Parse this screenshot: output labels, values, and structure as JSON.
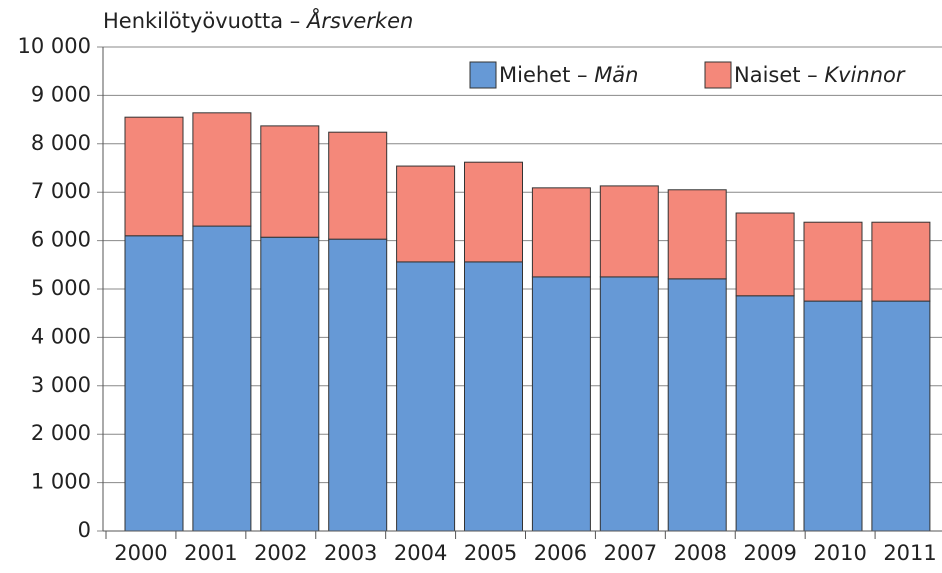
{
  "chart_data": {
    "type": "stacked_bar",
    "y_label": "Henkilötyövuotta – Årsverken",
    "categories": [
      "2000",
      "2001",
      "2002",
      "2003",
      "2004",
      "2005",
      "2006",
      "2007",
      "2008",
      "2009",
      "2010",
      "2011"
    ],
    "series": [
      {
        "name": "Miehet – Män",
        "color": "#6699d6",
        "values": [
          6100,
          6300,
          6070,
          6030,
          5560,
          5560,
          5250,
          5250,
          5210,
          4860,
          4750,
          4750
        ]
      },
      {
        "name": "Naiset – Kvinnor",
        "color": "#f4887a",
        "values": [
          2450,
          2340,
          2300,
          2210,
          1980,
          2060,
          1840,
          1880,
          1840,
          1710,
          1630,
          1630
        ]
      }
    ],
    "ylim": [
      0,
      10000
    ],
    "yticks": [
      0,
      {
        "value": 1000,
        "label": "1 000"
      },
      {
        "value": 2000,
        "label": "2 000"
      },
      {
        "value": 3000,
        "label": "3 000"
      },
      {
        "value": 4000,
        "label": "4 000"
      },
      {
        "value": 5000,
        "label": "5 000"
      },
      {
        "value": 6000,
        "label": "6 000"
      },
      {
        "value": 7000,
        "label": "7 000"
      },
      {
        "value": 8000,
        "label": "8 000"
      },
      {
        "value": 9000,
        "label": "9 000"
      },
      {
        "value": 10000,
        "label": "10 000"
      }
    ],
    "grid": true,
    "legend": "top-right"
  }
}
